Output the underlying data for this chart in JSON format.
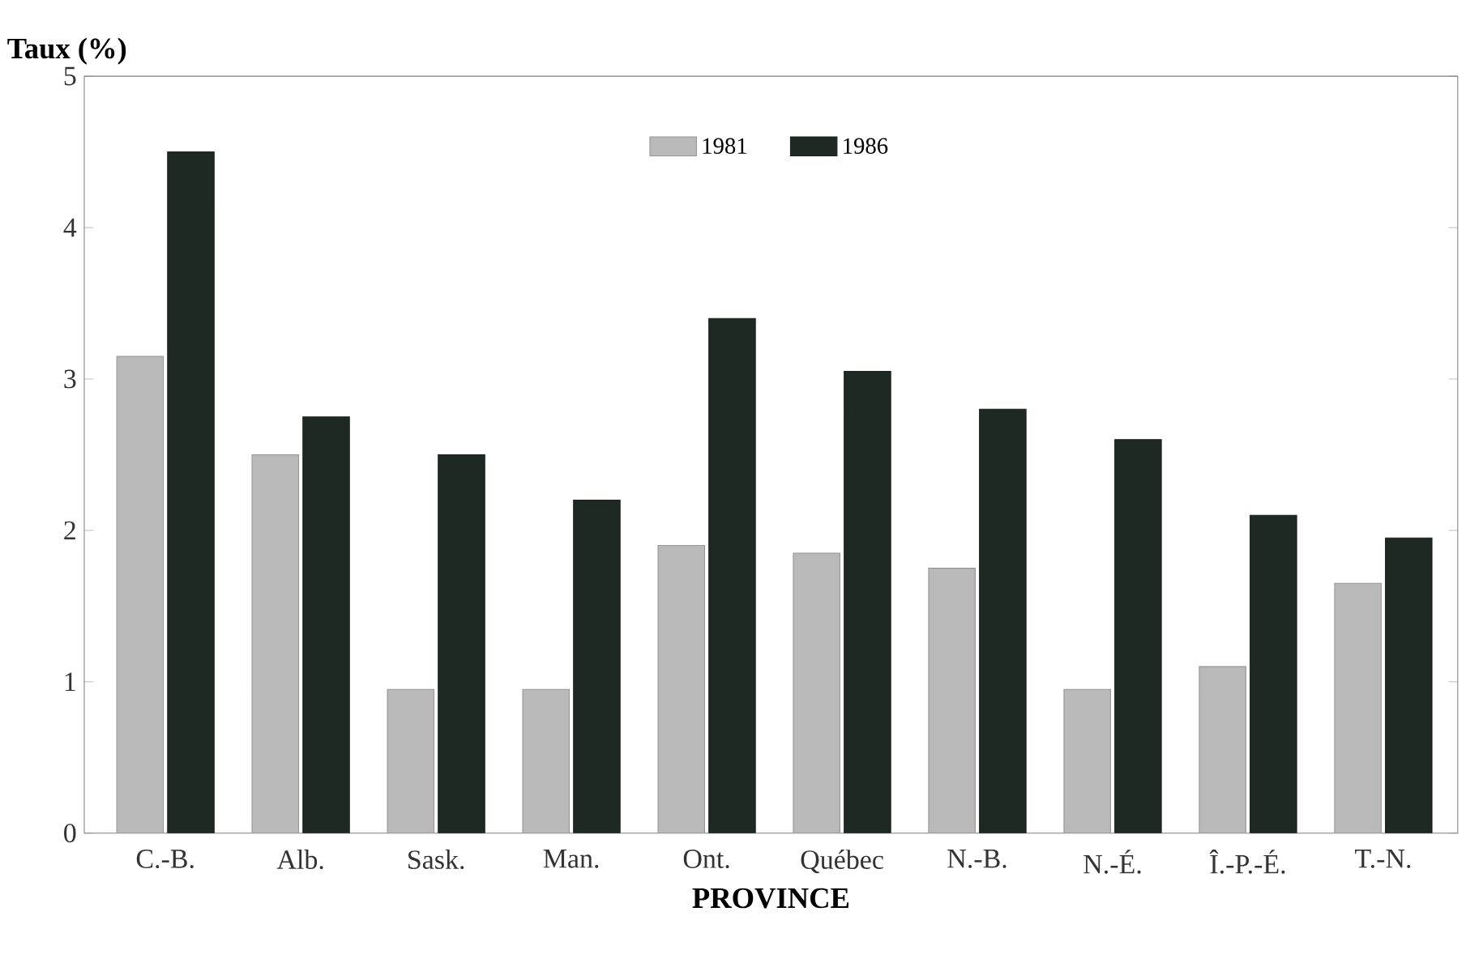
{
  "chart_data": {
    "type": "bar",
    "xlabel": "PROVINCE",
    "ylabel": "Taux (%)",
    "categories": [
      "C.-B.",
      "Alb.",
      "Sask.",
      "Man.",
      "Ont.",
      "Québec",
      "N.-B.",
      "N.-É.",
      "Î.-P.-É.",
      "T.-N."
    ],
    "series": [
      {
        "name": "1981",
        "color": "#b9b9b9",
        "values": [
          3.15,
          2.5,
          0.95,
          0.95,
          1.9,
          1.85,
          1.75,
          0.95,
          1.1,
          1.65
        ]
      },
      {
        "name": "1986",
        "color": "#1f2924",
        "values": [
          4.5,
          2.75,
          2.5,
          2.2,
          3.4,
          3.05,
          2.8,
          2.6,
          2.1,
          1.95
        ]
      }
    ],
    "ylim": [
      0,
      5
    ],
    "yticks": [
      0,
      1,
      2,
      3,
      4,
      5
    ],
    "grid": false,
    "legend": "top"
  }
}
